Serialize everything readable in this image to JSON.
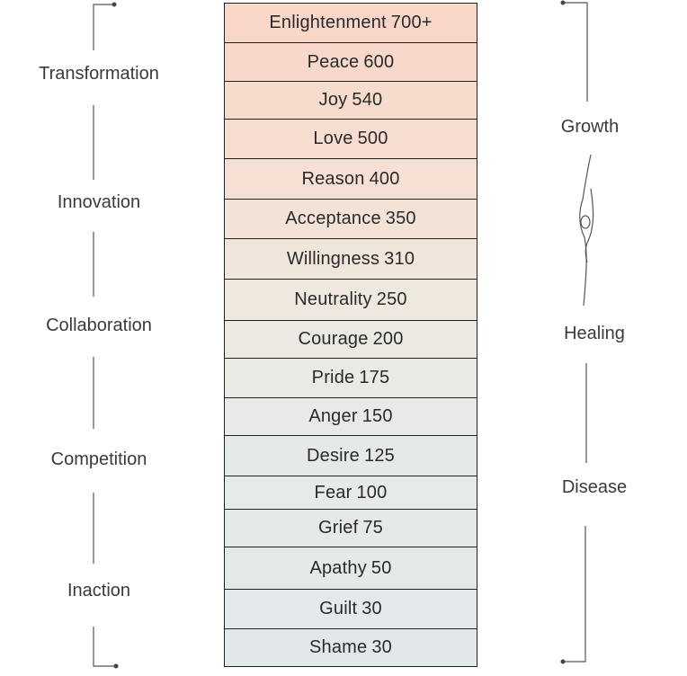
{
  "levels": [
    {
      "name": "Enlightenment",
      "value": "700+",
      "color": "#f8d7c9"
    },
    {
      "name": "Peace",
      "value": "600",
      "color": "#f8d8ca"
    },
    {
      "name": "Joy",
      "value": "540",
      "color": "#f7dbcd"
    },
    {
      "name": "Love",
      "value": "500",
      "color": "#f6ddd0"
    },
    {
      "name": "Reason",
      "value": "400",
      "color": "#f5e0d3"
    },
    {
      "name": "Acceptance",
      "value": "350",
      "color": "#f3e3d7"
    },
    {
      "name": "Willingness",
      "value": "310",
      "color": "#f1e6dc"
    },
    {
      "name": "Neutrality",
      "value": "250",
      "color": "#eee8df"
    },
    {
      "name": "Courage",
      "value": "200",
      "color": "#ebe9e2"
    },
    {
      "name": "Pride",
      "value": "175",
      "color": "#e8eae5"
    },
    {
      "name": "Anger",
      "value": "150",
      "color": "#e7eae6"
    },
    {
      "name": "Desire",
      "value": "125",
      "color": "#e6eae7"
    },
    {
      "name": "Fear",
      "value": "100",
      "color": "#e6eae8"
    },
    {
      "name": "Grief",
      "value": "75",
      "color": "#e5e9e9"
    },
    {
      "name": "Apathy",
      "value": "50",
      "color": "#e4e9ea"
    },
    {
      "name": "Guilt",
      "value": "30",
      "color": "#e3e8ea"
    },
    {
      "name": "Shame",
      "value": "30",
      "color": "#e2e8ea"
    }
  ],
  "left_labels": {
    "transformation": "Transformation",
    "innovation": "Innovation",
    "collaboration": "Collaboration",
    "competition": "Competition",
    "inaction": "Inaction"
  },
  "right_labels": {
    "growth": "Growth",
    "healing": "Healing",
    "disease": "Disease"
  }
}
